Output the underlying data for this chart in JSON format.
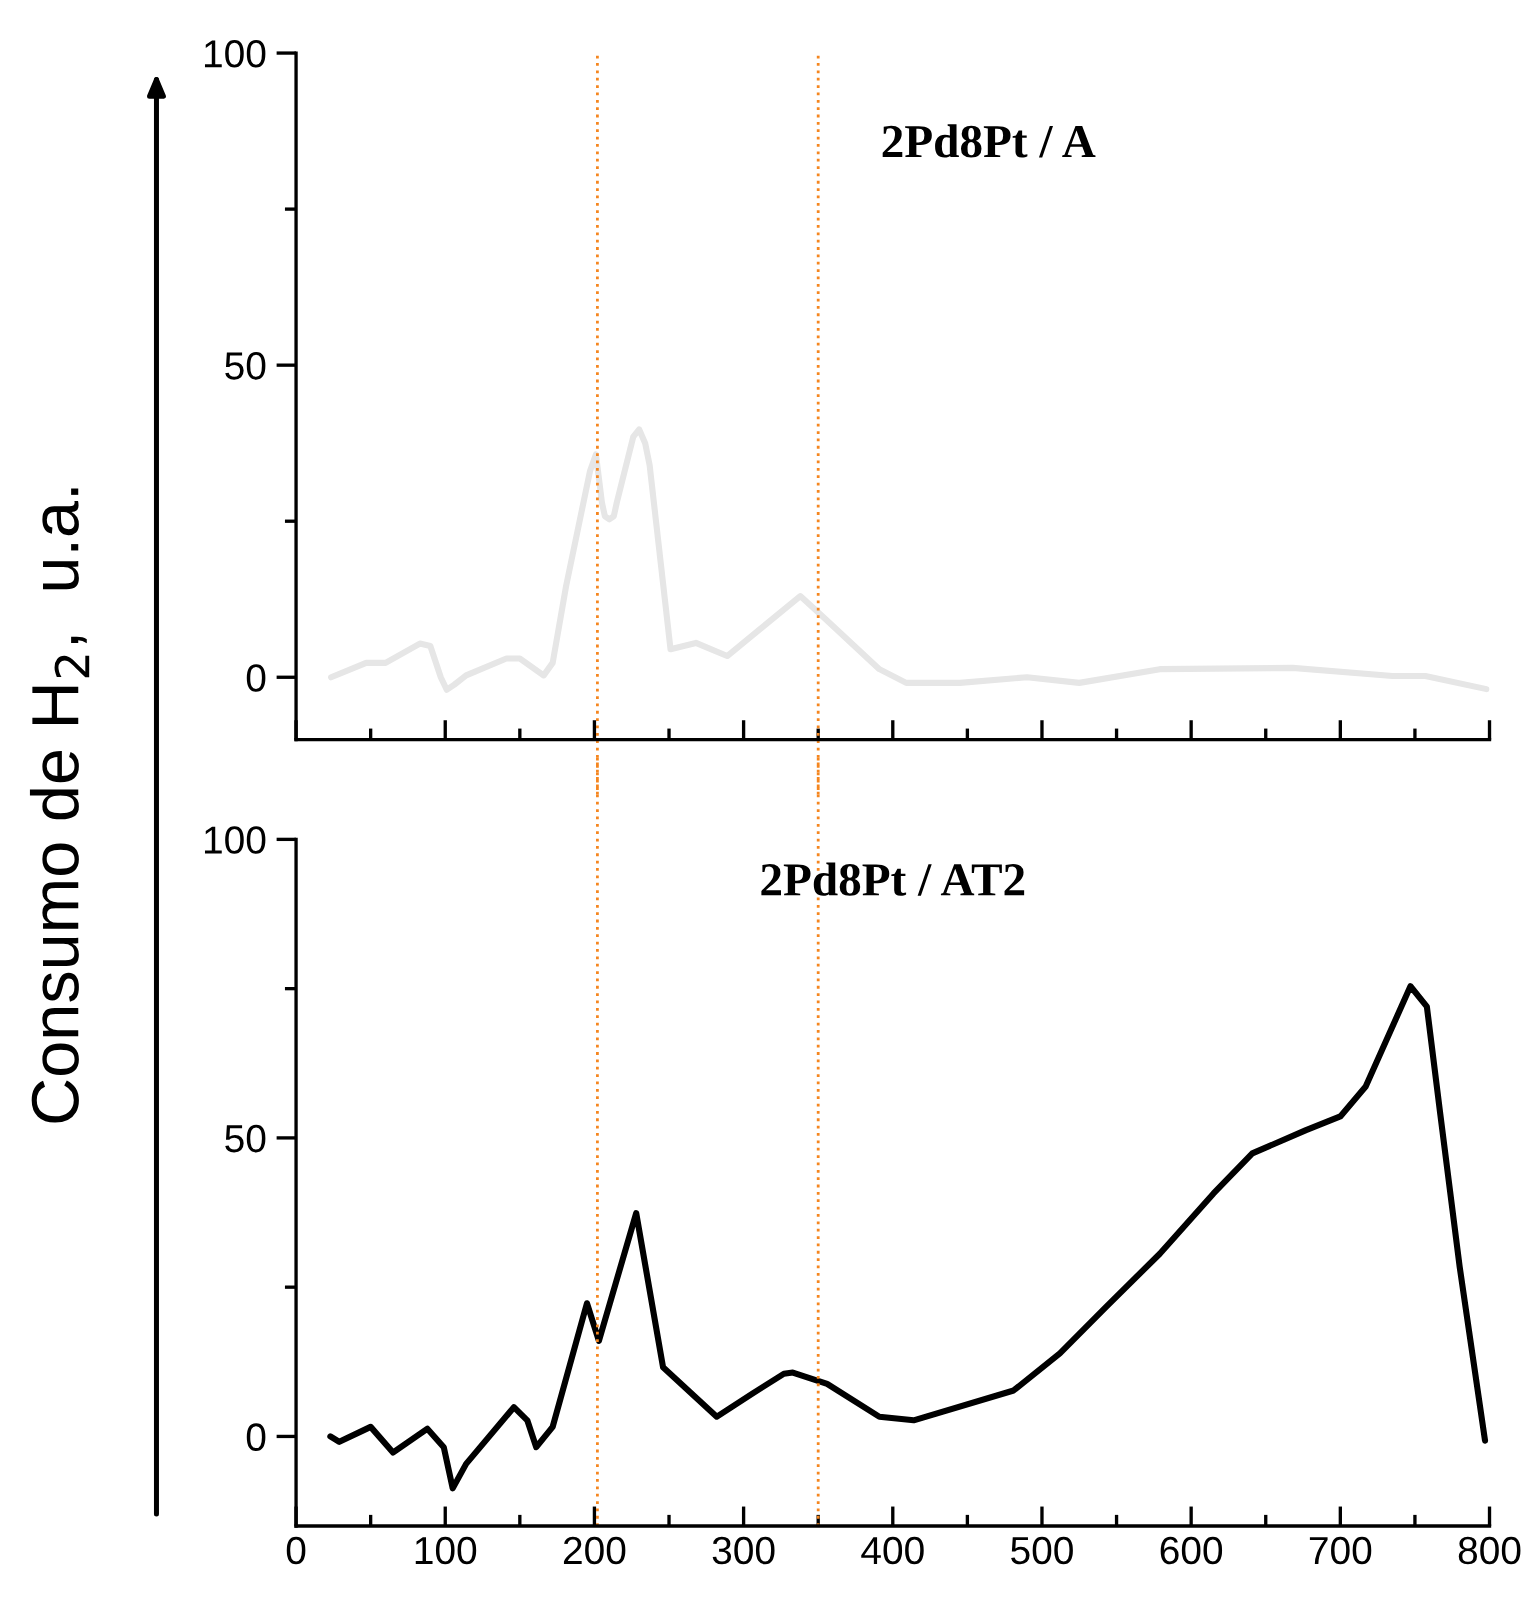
{
  "chart_data": [
    {
      "type": "line",
      "annotations": [
        "2Pd8Pt / A"
      ],
      "xlim": [
        0,
        800
      ],
      "ylim": [
        -10,
        100
      ],
      "yticks": [
        0,
        50,
        100
      ],
      "xticks": [
        0,
        100,
        200,
        300,
        400,
        500,
        600,
        700,
        800
      ],
      "tick_labels": "y",
      "grid": false,
      "legend": false,
      "ref_lines": [
        {
          "axis": "x",
          "value": 202,
          "color": "#f5861f",
          "line_style": "dotted"
        },
        {
          "axis": "x",
          "value": 350,
          "color": "#f5861f",
          "line_style": "dotted"
        }
      ],
      "series": [
        {
          "color": "#e6e6e6",
          "x": [
            23.5,
            47,
            60,
            83,
            90,
            97,
            101,
            106,
            114,
            141,
            150,
            166,
            172,
            181,
            197,
            201,
            205,
            207,
            210,
            213,
            215,
            226,
            230,
            234,
            237,
            251,
            268,
            289,
            311,
            338,
            355,
            391,
            409,
            445,
            490,
            525,
            579,
            668,
            735,
            757,
            798
          ],
          "values": [
            0,
            2.3,
            2.3,
            5.4,
            5,
            0,
            -2,
            -1.2,
            0.3,
            3,
            3,
            0.3,
            2.3,
            14.6,
            33,
            35.7,
            28,
            25.8,
            25.3,
            25.8,
            28,
            38.5,
            39.7,
            37.5,
            34,
            4.5,
            5.5,
            3.4,
            7.7,
            13,
            9.3,
            1.3,
            -0.9,
            -0.9,
            0,
            -0.9,
            1.3,
            1.5,
            0.2,
            0.2,
            -1.9
          ]
        }
      ]
    },
    {
      "type": "line",
      "annotations": [
        "2Pd8Pt / AT2"
      ],
      "ylabel": "Consumo de H$_{2}$,  u.a.",
      "xlim": [
        0,
        800
      ],
      "ylim": [
        -15,
        100
      ],
      "yticks": [
        0,
        50,
        100
      ],
      "xticks": [
        0,
        100,
        200,
        300,
        400,
        500,
        600,
        700,
        800
      ],
      "grid": false,
      "legend": false,
      "ref_lines": [
        {
          "axis": "x",
          "value": 202,
          "color": "#f5861f",
          "line_style": "dotted"
        },
        {
          "axis": "x",
          "value": 350,
          "color": "#f5861f",
          "line_style": "dotted"
        }
      ],
      "series": [
        {
          "color": "#000000",
          "x": [
            23,
            29,
            50,
            65,
            88,
            99,
            105,
            114,
            146,
            155,
            161,
            172,
            195,
            203,
            228,
            246,
            282,
            306,
            327,
            333,
            356,
            391,
            414,
            481,
            512,
            543,
            579,
            615,
            641,
            677,
            700,
            717,
            747,
            758,
            767,
            780,
            797
          ],
          "values": [
            0,
            -0.9,
            1.6,
            -2.7,
            1.3,
            -1.8,
            -8.7,
            -4.6,
            4.9,
            2.7,
            -1.8,
            1.6,
            22.3,
            16,
            37.4,
            11.6,
            3.3,
            7.2,
            10.5,
            10.7,
            8.8,
            3.3,
            2.7,
            7.7,
            13.9,
            21.7,
            30.6,
            40.7,
            47.4,
            51.3,
            53.6,
            58.6,
            75.4,
            72,
            54,
            28.4,
            -0.7
          ]
        }
      ]
    }
  ]
}
